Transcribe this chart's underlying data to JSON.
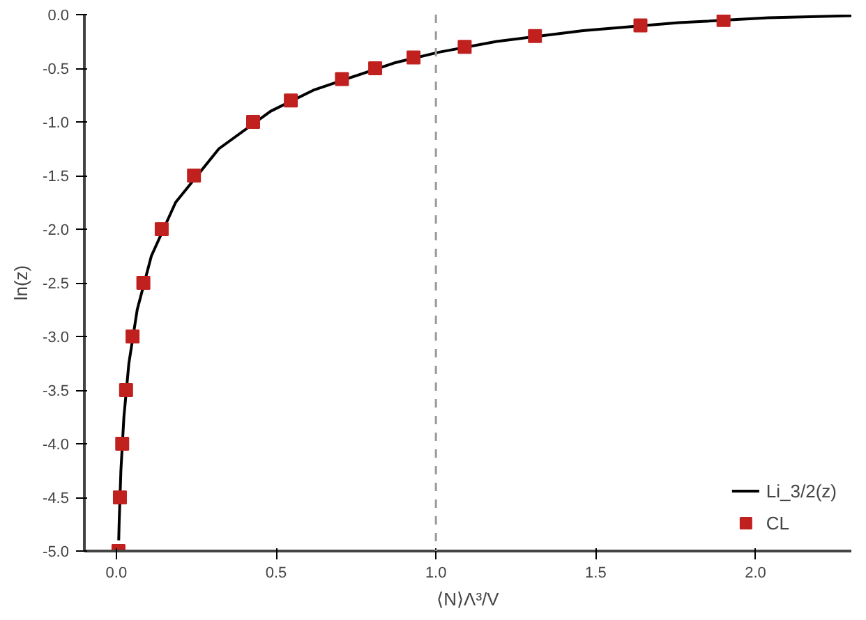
{
  "chart_data": {
    "type": "line",
    "xlabel": "⟨N⟩Λ³/V",
    "ylabel": "ln(z)",
    "xlim": [
      -0.1,
      2.3
    ],
    "ylim": [
      -5.0,
      0.0
    ],
    "xticks": [
      {
        "value": 0,
        "label": "0.0"
      },
      {
        "value": 0.5,
        "label": "0.5"
      },
      {
        "value": 1,
        "label": "1.0"
      },
      {
        "value": 1.5,
        "label": "1.5"
      },
      {
        "value": 2,
        "label": "2.0"
      }
    ],
    "yticks": [
      {
        "value": -5,
        "label": "-5.0"
      },
      {
        "value": -4.5,
        "label": "-4.5"
      },
      {
        "value": -4,
        "label": "-4.0"
      },
      {
        "value": -3.5,
        "label": "-3.5"
      },
      {
        "value": -3,
        "label": "-3.0"
      },
      {
        "value": -2.5,
        "label": "-2.5"
      },
      {
        "value": -2,
        "label": "-2.0"
      },
      {
        "value": -1.5,
        "label": "-1.5"
      },
      {
        "value": -1,
        "label": "-1.0"
      },
      {
        "value": -0.5,
        "label": "-0.5"
      },
      {
        "value": 0,
        "label": "0.0"
      }
    ],
    "grid": false,
    "legend": "bottom right",
    "ref_lines": [
      {
        "axis": "x",
        "value": 1.0,
        "label": null,
        "color": "#999999",
        "line_style": "dashed"
      }
    ],
    "series": [
      {
        "name": "Li_3/2(z)",
        "color": "#000000",
        "marker": "none",
        "x": [
          0.0075,
          0.0087,
          0.0143,
          0.0237,
          0.0393,
          0.0654,
          0.1096,
          0.1856,
          0.321,
          0.483,
          0.62,
          0.87,
          1.01,
          1.19,
          1.46,
          1.76,
          2.04,
          2.3
        ],
        "values": [
          -4.9,
          -4.75,
          -4.25,
          -3.75,
          -3.25,
          -2.75,
          -2.25,
          -1.75,
          -1.25,
          -0.9,
          -0.7,
          -0.45,
          -0.35,
          -0.25,
          -0.15,
          -0.075,
          -0.03,
          -0.01
        ]
      },
      {
        "name": "CL",
        "type": "scatter",
        "color": "#c0201e",
        "marker": "square",
        "x": [
          0.0068,
          0.0112,
          0.0184,
          0.0305,
          0.0507,
          0.0846,
          0.142,
          0.243,
          0.428,
          0.546,
          0.706,
          0.81,
          0.93,
          1.09,
          1.31,
          1.64,
          1.9
        ],
        "values": [
          -5,
          -4.5,
          -4,
          -3.5,
          -3,
          -2.5,
          -2,
          -1.5,
          -1,
          -0.8,
          -0.6,
          -0.5,
          -0.4,
          -0.3,
          -0.2,
          -0.1,
          -0.05
        ]
      }
    ]
  }
}
